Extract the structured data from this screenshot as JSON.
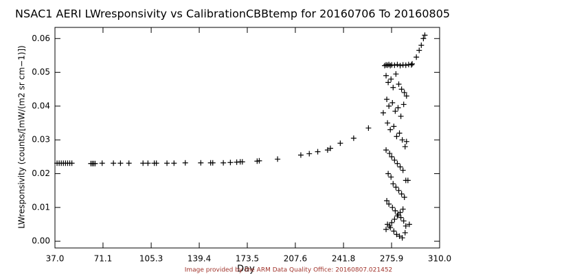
{
  "chart_data": {
    "type": "scatter",
    "title": "NSAC1 AERI LWresponsivity vs CalibrationCBBtemp for 20160706 To 20160805",
    "x_label": "Day",
    "y_label": "LWresponsivity (counts/[mW/(m2 sr cm−1)])",
    "footer": "Image provided by the ARM Data Quality Office: 20160807.021452",
    "color": "#000000",
    "xlim": [
      37.0,
      310.0
    ],
    "ylim": [
      -0.002,
      0.0633
    ],
    "xticks": [
      {
        "value": 37.0,
        "label": "37.0"
      },
      71.1,
      105.3,
      139.4,
      173.5,
      207.6,
      241.8,
      275.9,
      {
        "value": 310.0,
        "label": "310.0"
      }
    ],
    "yticks": [
      {
        "value": 0,
        "label": "0.00"
      },
      0.01,
      0.02,
      0.03,
      0.04,
      0.05,
      0.06
    ],
    "x": [
      38.5,
      40.0,
      41.5,
      43.0,
      44.5,
      46.0,
      47.5,
      49.0,
      62.5,
      63.5,
      64.5,
      65.5,
      70.5,
      78.5,
      83.5,
      89.5,
      99.5,
      103.0,
      107.5,
      109.0,
      116.5,
      121.5,
      129.5,
      140.5,
      147.5,
      149.0,
      156.5,
      161.5,
      166.0,
      168.5,
      170.0,
      180.5,
      182.0,
      195.0,
      211.5,
      217.5,
      223.5,
      230.5,
      232.5,
      239.5,
      249.0,
      259.5,
      270.0,
      271.0,
      272.0,
      273.0,
      274.0,
      275.0,
      276.0,
      278.0,
      280.0,
      282.0,
      284.0,
      286.0,
      288.0,
      290.0,
      272.0,
      273.5,
      275.5,
      277.0,
      279.0,
      281.0,
      283.0,
      285.0,
      272.5,
      274.0,
      276.5,
      278.5,
      280.5,
      282.5,
      284.5,
      286.5,
      273.0,
      275.0,
      277.5,
      279.5,
      281.5,
      283.5,
      285.5,
      272.0,
      274.5,
      276.0,
      278.0,
      280.0,
      282.0,
      284.0,
      286.0,
      273.5,
      275.5,
      277.0,
      279.0,
      281.0,
      283.0,
      285.0,
      272.5,
      274.0,
      276.5,
      278.5,
      280.5,
      282.5,
      284.5,
      273.0,
      275.0,
      277.5,
      279.5,
      281.5,
      283.5,
      285.5,
      272.0,
      274.5,
      276.0,
      278.0,
      280.0,
      282.0,
      284.0,
      286.5,
      286.0,
      287.5,
      288.5,
      290.5,
      293.5,
      295.5,
      297.0,
      298.5,
      299.5
    ],
    "values": [
      0.0231,
      0.0231,
      0.0231,
      0.0231,
      0.0231,
      0.0231,
      0.0231,
      0.0231,
      0.023,
      0.023,
      0.023,
      0.023,
      0.0231,
      0.0231,
      0.0231,
      0.0231,
      0.0231,
      0.0231,
      0.0231,
      0.0231,
      0.0231,
      0.0231,
      0.0232,
      0.0232,
      0.0232,
      0.0232,
      0.0232,
      0.0233,
      0.0234,
      0.0235,
      0.0235,
      0.0237,
      0.0238,
      0.0243,
      0.0255,
      0.0259,
      0.0265,
      0.027,
      0.0275,
      0.029,
      0.0305,
      0.0335,
      0.038,
      0.052,
      0.0522,
      0.0521,
      0.0523,
      0.052,
      0.0522,
      0.0521,
      0.0523,
      0.052,
      0.0522,
      0.0521,
      0.0523,
      0.0522,
      0.049,
      0.047,
      0.048,
      0.0455,
      0.0495,
      0.0465,
      0.045,
      0.044,
      0.042,
      0.04,
      0.041,
      0.0385,
      0.0395,
      0.037,
      0.0405,
      0.043,
      0.035,
      0.033,
      0.034,
      0.031,
      0.032,
      0.03,
      0.028,
      0.027,
      0.026,
      0.025,
      0.024,
      0.023,
      0.022,
      0.021,
      0.018,
      0.02,
      0.019,
      0.017,
      0.016,
      0.015,
      0.014,
      0.013,
      0.012,
      0.011,
      0.01,
      0.009,
      0.008,
      0.007,
      0.006,
      0.005,
      0.004,
      0.003,
      0.002,
      0.0015,
      0.001,
      0.0025,
      0.0035,
      0.0045,
      0.0055,
      0.0065,
      0.0075,
      0.0085,
      0.0095,
      0.0295,
      0.0045,
      0.018,
      0.005,
      0.0525,
      0.0545,
      0.0565,
      0.058,
      0.06,
      0.061
    ]
  }
}
